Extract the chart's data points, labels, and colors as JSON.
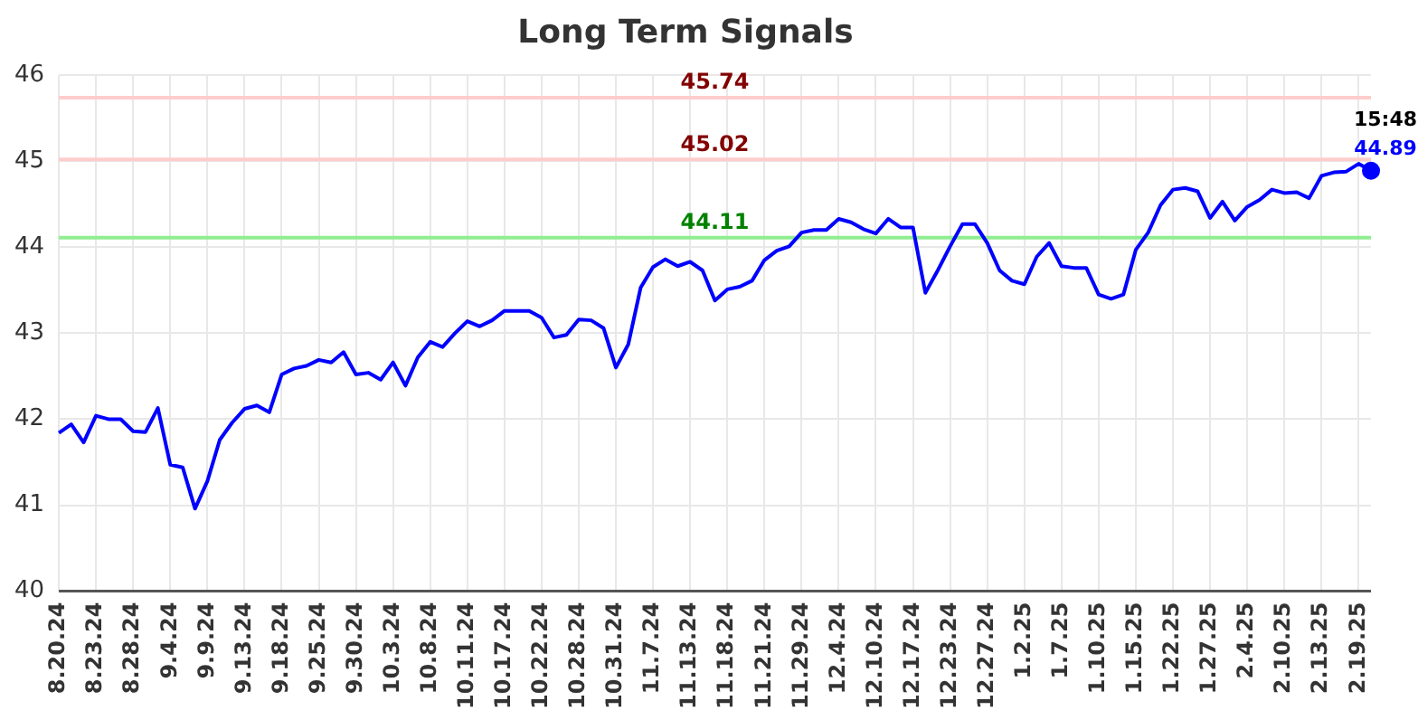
{
  "chart_data": {
    "type": "line",
    "title": "Long Term Signals",
    "categories": [
      "8.20.24",
      null,
      null,
      "8.23.24",
      null,
      null,
      "8.28.24",
      null,
      null,
      "9.4.24",
      null,
      null,
      "9.9.24",
      null,
      null,
      "9.13.24",
      null,
      null,
      "9.18.24",
      null,
      null,
      "9.25.24",
      null,
      null,
      "9.30.24",
      null,
      null,
      "10.3.24",
      null,
      null,
      "10.8.24",
      null,
      null,
      "10.11.24",
      null,
      null,
      "10.17.24",
      null,
      null,
      "10.22.24",
      null,
      null,
      "10.28.24",
      null,
      null,
      "10.31.24",
      null,
      null,
      "11.7.24",
      null,
      null,
      "11.13.24",
      null,
      null,
      "11.18.24",
      null,
      null,
      "11.21.24",
      null,
      null,
      "11.29.24",
      null,
      null,
      "12.4.24",
      null,
      null,
      "12.10.24",
      null,
      null,
      "12.17.24",
      null,
      null,
      "12.23.24",
      null,
      null,
      "12.27.24",
      null,
      null,
      "1.2.25",
      null,
      null,
      "1.7.25",
      null,
      null,
      "1.10.25",
      null,
      null,
      "1.15.25",
      null,
      null,
      "1.22.25",
      null,
      null,
      "1.27.25",
      null,
      null,
      "2.4.25",
      null,
      null,
      "2.10.25",
      null,
      null,
      "2.13.25",
      null,
      null,
      "2.19.25",
      null
    ],
    "series": [
      {
        "color": "#0000ff",
        "values": [
          41.84,
          41.94,
          41.73,
          42.04,
          42.0,
          42.0,
          41.86,
          41.85,
          42.13,
          41.47,
          41.44,
          40.96,
          41.28,
          41.76,
          41.96,
          42.12,
          42.16,
          42.08,
          42.52,
          42.59,
          42.62,
          42.69,
          42.66,
          42.78,
          42.52,
          42.54,
          42.46,
          42.66,
          42.39,
          42.72,
          42.9,
          42.84,
          43.0,
          43.14,
          43.08,
          43.15,
          43.26,
          43.26,
          43.26,
          43.18,
          42.95,
          42.98,
          43.16,
          43.15,
          43.06,
          42.6,
          42.87,
          43.53,
          43.77,
          43.86,
          43.78,
          43.83,
          43.73,
          43.38,
          43.51,
          43.54,
          43.61,
          43.85,
          43.96,
          44.01,
          44.17,
          44.2,
          44.2,
          44.33,
          44.29,
          44.21,
          44.16,
          44.33,
          44.23,
          44.23,
          43.47,
          43.73,
          44.01,
          44.27,
          44.27,
          44.05,
          43.73,
          43.61,
          43.57,
          43.89,
          44.05,
          43.78,
          43.76,
          43.76,
          43.45,
          43.4,
          43.45,
          43.97,
          44.17,
          44.49,
          44.67,
          44.69,
          44.65,
          44.34,
          44.53,
          44.31,
          44.47,
          44.55,
          44.67,
          44.63,
          44.64,
          44.57,
          44.83,
          44.87,
          44.88,
          44.97,
          44.89
        ],
        "value_labels": [
          null,
          null,
          null,
          null,
          null,
          null,
          null,
          null,
          null,
          null,
          null,
          null,
          null,
          null,
          null,
          null,
          null,
          null,
          null,
          null,
          null,
          null,
          null,
          null,
          null,
          null,
          null,
          null,
          null,
          null,
          null,
          null,
          null,
          null,
          null,
          null,
          null,
          null,
          null,
          null,
          null,
          null,
          null,
          null,
          null,
          null,
          null,
          null,
          null,
          null,
          null,
          null,
          null,
          null,
          null,
          null,
          null,
          null,
          null,
          null,
          null,
          null,
          null,
          null,
          null,
          null,
          null,
          null,
          null,
          null,
          null,
          null,
          null,
          null,
          null,
          null,
          null,
          null,
          null,
          null,
          null,
          null,
          null,
          null,
          null,
          null,
          null,
          null,
          null,
          null,
          null,
          null,
          null,
          null,
          null,
          null,
          null,
          null,
          null,
          null,
          null,
          null,
          null,
          null,
          null,
          null,
          "44.89"
        ]
      }
    ],
    "ylim": [
      40,
      46
    ],
    "yticks": [
      40,
      41,
      42,
      43,
      44,
      45,
      46
    ],
    "grid": true,
    "legend": false,
    "ref_lines": [
      {
        "axis": "y",
        "value": 45.74,
        "label": "45.74",
        "color": "#ffcccc"
      },
      {
        "axis": "y",
        "value": 45.02,
        "label": "45.02",
        "color": "#ffcccc"
      },
      {
        "axis": "y",
        "value": 44.11,
        "label": "44.11",
        "color": "#90ee90"
      }
    ],
    "annotations": [
      "15:48"
    ]
  }
}
